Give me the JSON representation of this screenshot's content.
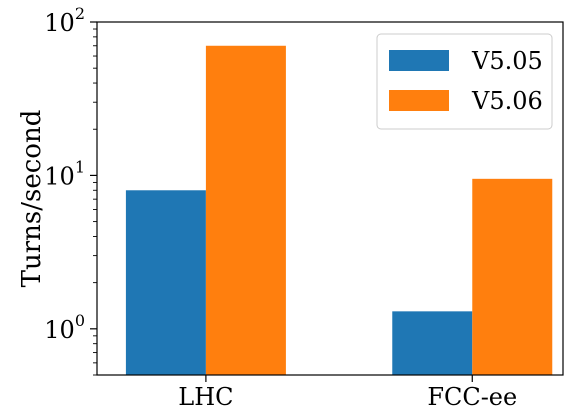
{
  "chart_data": {
    "type": "bar",
    "categories": [
      "LHC",
      "FCC-ee"
    ],
    "series": [
      {
        "name": "V5.05",
        "values": [
          8.0,
          1.3
        ],
        "color": "#1f77b4"
      },
      {
        "name": "V5.06",
        "values": [
          70.0,
          9.5
        ],
        "color": "#ff7f0e"
      }
    ],
    "ylabel": "Turns/second",
    "yscale": "log",
    "ylim": [
      0.5,
      100
    ],
    "yticks": [
      {
        "value": 1,
        "base": "10",
        "exp": "0"
      },
      {
        "value": 10,
        "base": "10",
        "exp": "1"
      },
      {
        "value": 100,
        "base": "10",
        "exp": "2"
      }
    ],
    "grid": false,
    "legend": "top-right"
  }
}
